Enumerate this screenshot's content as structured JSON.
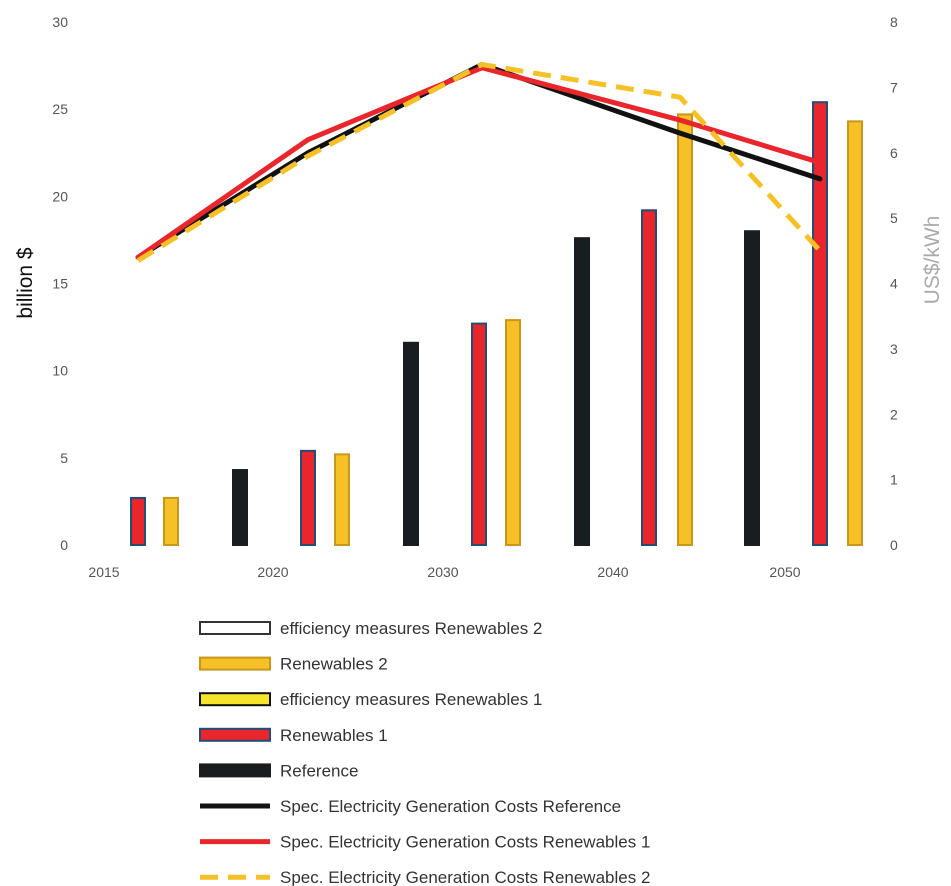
{
  "chart_data": {
    "type": "bar",
    "x": [
      2015,
      2020,
      2030,
      2040,
      2050
    ],
    "bar_groups": [
      2016,
      2018,
      2022,
      2024,
      2028,
      2032,
      2034,
      2038,
      2042,
      2044,
      2048,
      2052,
      2054
    ],
    "xticks": [
      "2015",
      "2020",
      "2030",
      "2040",
      "2050"
    ],
    "xlim": [
      2014,
      2056
    ],
    "ylabel": "billion $",
    "ylim": [
      0,
      30
    ],
    "yticks": [
      "0",
      "5",
      "10",
      "15",
      "20",
      "25",
      "30"
    ],
    "y2label": "US$/kWh",
    "y2lim": [
      0,
      8
    ],
    "y2ticks": [
      "0",
      "1",
      "2",
      "3",
      "4",
      "5",
      "6",
      "7",
      "8"
    ],
    "bars": [
      {
        "series": "Renewables 1",
        "x": 2016,
        "value": 2.7
      },
      {
        "series": "Renewables 2",
        "x": 2016,
        "value": 2.7
      },
      {
        "series": "Reference",
        "x": 2018,
        "value": 4.3
      },
      {
        "series": "Renewables 1",
        "x": 2022,
        "value": 5.4
      },
      {
        "series": "Renewables 2",
        "x": 2022,
        "value": 5.2
      },
      {
        "series": "Reference",
        "x": 2028,
        "value": 11.6
      },
      {
        "series": "Renewables 1",
        "x": 2032,
        "value": 12.7
      },
      {
        "series": "Renewables 2",
        "x": 2032,
        "value": 12.9
      },
      {
        "series": "Reference",
        "x": 2038,
        "value": 17.6
      },
      {
        "series": "Renewables 1",
        "x": 2042,
        "value": 19.2
      },
      {
        "series": "Renewables 2",
        "x": 2042,
        "value": 24.7
      },
      {
        "series": "Reference",
        "x": 2048,
        "value": 18.0
      },
      {
        "series": "Renewables 1",
        "x": 2052,
        "value": 25.4
      },
      {
        "series": "Renewables 2",
        "x": 2052,
        "value": 24.3
      }
    ],
    "lines": [
      {
        "name": "Spec. Electricity Generation Costs   Reference",
        "color": "#111111",
        "dash": false,
        "x": [
          2016,
          2022,
          2032,
          2042,
          2052
        ],
        "y": [
          4.4,
          6.0,
          7.35,
          6.3,
          5.6
        ]
      },
      {
        "name": "Spec. Electricity Generation Costs   Renewables 1",
        "color": "#e8262b",
        "dash": false,
        "x": [
          2016,
          2022,
          2032,
          2042,
          2052
        ],
        "y": [
          4.4,
          6.2,
          7.3,
          6.5,
          5.85
        ]
      },
      {
        "name": "Spec. Electricity Generation Costs   Renewables 2",
        "color": "#f5c127",
        "dash": true,
        "x": [
          2016,
          2022,
          2032,
          2042,
          2052
        ],
        "y": [
          4.35,
          5.95,
          7.35,
          6.85,
          4.5
        ]
      }
    ],
    "legend": [
      {
        "label": "efficiency measures  Renewables 2",
        "kind": "box",
        "fill": "#ffffff",
        "stroke": "#333333"
      },
      {
        "label": "Renewables 2",
        "kind": "box",
        "fill": "#f5c127",
        "stroke": "#c8961b"
      },
      {
        "label": "efficiency measures  Renewables 1",
        "kind": "box",
        "fill": "#f5e42a",
        "stroke": "#111111"
      },
      {
        "label": "Renewables 1",
        "kind": "box",
        "fill": "#e8262b",
        "stroke": "#1f4e79"
      },
      {
        "label": "Reference",
        "kind": "box",
        "fill": "#1a1d20",
        "stroke": "#1a1d20"
      },
      {
        "label": "Spec. Electricity Generation Costs   Reference",
        "kind": "line",
        "color": "#111111",
        "dash": false
      },
      {
        "label": "Spec. Electricity Generation Costs   Renewables 1",
        "kind": "line",
        "color": "#e8262b",
        "dash": false
      },
      {
        "label": "Spec. Electricity Generation Costs   Renewables 2",
        "kind": "line",
        "color": "#f5c127",
        "dash": true
      }
    ],
    "legend_position": "bottom",
    "grid": false,
    "colors": {
      "reference_bar": "#1a1d20",
      "renewables1_bar": "#e8262b",
      "renewables1_edge": "#1f4e79",
      "renewables2_bar": "#f5c127",
      "renewables2_edge": "#c8961b"
    }
  }
}
